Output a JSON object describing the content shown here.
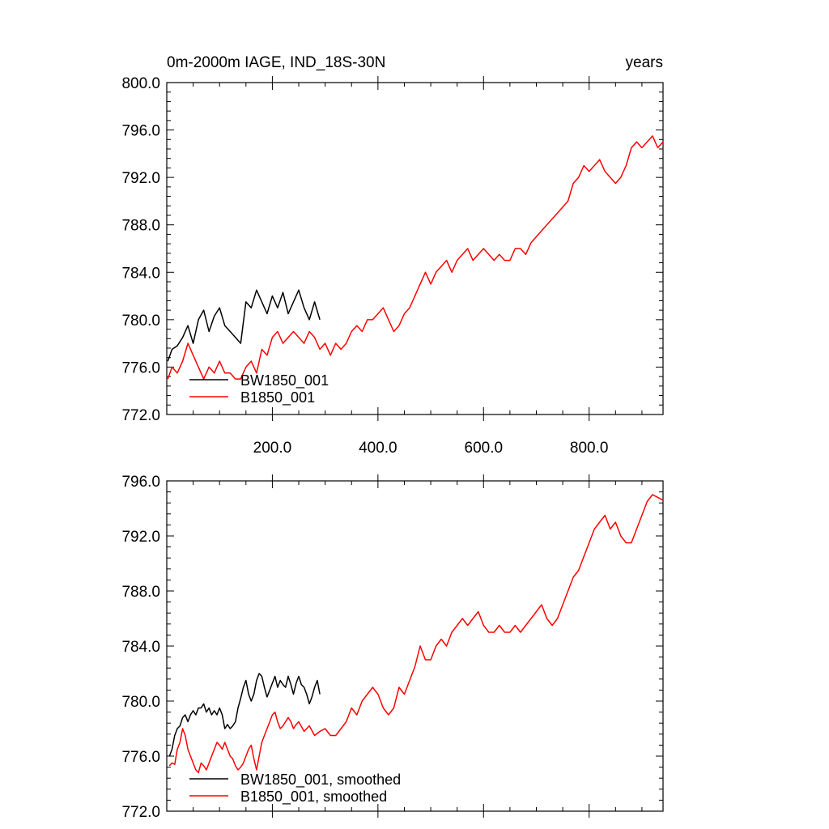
{
  "chart_data": [
    {
      "type": "line",
      "title": "0m-2000m IAGE, IND_18S-30N",
      "units": "years",
      "xlim": [
        0,
        940
      ],
      "ylim": [
        772,
        800
      ],
      "xticks": [
        200,
        400,
        600,
        800
      ],
      "xtick_labels": [
        "200.0",
        "400.0",
        "600.0",
        "800.0"
      ],
      "yticks": [
        772,
        776,
        780,
        784,
        788,
        792,
        796,
        800
      ],
      "ytick_labels": [
        "772.0",
        "776.0",
        "780.0",
        "784.0",
        "788.0",
        "792.0",
        "796.0",
        "800.0"
      ],
      "legend_position": "bottom-left",
      "series": [
        {
          "name": "BW1850_001",
          "color": "#000000",
          "x": [
            2,
            10,
            20,
            30,
            40,
            50,
            60,
            70,
            80,
            90,
            100,
            110,
            120,
            130,
            140,
            150,
            160,
            170,
            180,
            190,
            200,
            210,
            220,
            230,
            240,
            250,
            260,
            270,
            280,
            290
          ],
          "y": [
            776.5,
            777.5,
            777.8,
            778.5,
            779.5,
            778.0,
            780.0,
            780.8,
            779.0,
            780.3,
            781.0,
            779.5,
            779.0,
            778.5,
            778.0,
            781.5,
            781.0,
            782.5,
            781.5,
            780.5,
            782.0,
            781.0,
            782.3,
            780.5,
            781.5,
            782.5,
            781.0,
            780.0,
            781.5,
            780.0
          ]
        },
        {
          "name": "B1850_001",
          "color": "#ff0000",
          "x": [
            2,
            10,
            20,
            30,
            40,
            50,
            60,
            70,
            80,
            90,
            100,
            110,
            120,
            130,
            140,
            150,
            160,
            170,
            180,
            190,
            200,
            210,
            220,
            230,
            240,
            250,
            260,
            270,
            280,
            290,
            300,
            310,
            320,
            330,
            340,
            350,
            360,
            370,
            380,
            390,
            400,
            410,
            420,
            430,
            440,
            450,
            460,
            470,
            480,
            490,
            500,
            510,
            520,
            530,
            540,
            550,
            560,
            570,
            580,
            590,
            600,
            610,
            620,
            630,
            640,
            650,
            660,
            670,
            680,
            690,
            700,
            710,
            720,
            730,
            740,
            750,
            760,
            770,
            780,
            790,
            800,
            810,
            820,
            830,
            840,
            850,
            860,
            870,
            880,
            890,
            900,
            910,
            920,
            930,
            940
          ],
          "y": [
            775.0,
            776.0,
            775.5,
            776.5,
            778.0,
            777.0,
            776.0,
            775.0,
            776.0,
            775.5,
            776.5,
            775.5,
            775.5,
            775.0,
            775.0,
            776.0,
            776.5,
            775.5,
            777.5,
            777.0,
            778.5,
            779.0,
            778.0,
            778.5,
            779.0,
            778.5,
            778.0,
            779.0,
            778.5,
            777.5,
            778.0,
            777.0,
            778.0,
            777.5,
            778.0,
            779.0,
            779.5,
            779.0,
            780.0,
            780.0,
            780.5,
            781.0,
            780.0,
            779.0,
            779.5,
            780.5,
            781.0,
            782.0,
            783.0,
            784.0,
            783.0,
            784.0,
            784.5,
            785.0,
            784.0,
            785.0,
            785.5,
            786.0,
            785.0,
            785.5,
            786.0,
            785.5,
            785.0,
            785.5,
            785.0,
            785.0,
            786.0,
            786.0,
            785.5,
            786.5,
            787.0,
            787.5,
            788.0,
            788.5,
            789.0,
            789.5,
            790.0,
            791.5,
            792.0,
            793.0,
            792.5,
            793.0,
            793.5,
            792.5,
            792.0,
            791.5,
            792.0,
            793.0,
            794.5,
            795.0,
            794.5,
            795.0,
            795.5,
            794.5,
            795.0
          ]
        }
      ]
    },
    {
      "type": "line",
      "xlim": [
        0,
        940
      ],
      "ylim": [
        772,
        796
      ],
      "yticks": [
        772,
        776,
        780,
        784,
        788,
        792,
        796
      ],
      "ytick_labels": [
        "772.0",
        "776.0",
        "780.0",
        "784.0",
        "788.0",
        "792.0",
        "796.0"
      ],
      "legend_position": "bottom-left",
      "series": [
        {
          "name": "BW1850_001, smoothed",
          "color": "#000000",
          "x": [
            5,
            10,
            15,
            20,
            25,
            30,
            35,
            40,
            45,
            50,
            55,
            60,
            65,
            70,
            75,
            80,
            85,
            90,
            95,
            100,
            105,
            110,
            115,
            120,
            125,
            130,
            135,
            140,
            145,
            150,
            155,
            160,
            165,
            170,
            175,
            180,
            185,
            190,
            195,
            200,
            205,
            210,
            215,
            220,
            225,
            230,
            235,
            240,
            245,
            250,
            255,
            260,
            265,
            270,
            275,
            280,
            285,
            290
          ],
          "y": [
            776.0,
            776.5,
            777.5,
            778.0,
            778.2,
            778.8,
            779.0,
            778.5,
            779.0,
            779.3,
            779.0,
            779.5,
            779.5,
            779.8,
            779.2,
            779.5,
            779.0,
            779.3,
            779.0,
            779.5,
            779.0,
            778.0,
            778.3,
            778.0,
            778.2,
            778.5,
            779.5,
            780.2,
            781.0,
            781.5,
            780.5,
            780.0,
            780.5,
            781.5,
            782.0,
            781.8,
            781.0,
            780.3,
            780.8,
            781.3,
            781.8,
            781.0,
            781.5,
            781.2,
            781.0,
            781.8,
            781.2,
            780.5,
            781.3,
            781.8,
            781.2,
            781.0,
            780.5,
            779.8,
            780.3,
            781.0,
            781.5,
            780.5
          ]
        },
        {
          "name": "B1850_001, smoothed",
          "color": "#ff0000",
          "x": [
            5,
            10,
            15,
            20,
            25,
            30,
            35,
            40,
            45,
            50,
            55,
            60,
            65,
            70,
            75,
            80,
            85,
            90,
            95,
            100,
            105,
            110,
            115,
            120,
            125,
            130,
            135,
            140,
            145,
            150,
            155,
            160,
            165,
            170,
            175,
            180,
            185,
            190,
            195,
            200,
            205,
            210,
            215,
            220,
            225,
            230,
            235,
            240,
            245,
            250,
            260,
            270,
            280,
            290,
            300,
            310,
            320,
            330,
            340,
            350,
            360,
            370,
            380,
            390,
            400,
            410,
            420,
            430,
            440,
            450,
            460,
            470,
            480,
            490,
            500,
            510,
            520,
            530,
            540,
            550,
            560,
            570,
            580,
            590,
            600,
            610,
            620,
            630,
            640,
            650,
            660,
            670,
            680,
            690,
            700,
            710,
            720,
            730,
            740,
            750,
            760,
            770,
            780,
            790,
            800,
            810,
            820,
            830,
            840,
            850,
            860,
            870,
            880,
            890,
            900,
            910,
            920,
            930,
            940
          ],
          "y": [
            775.3,
            775.5,
            775.4,
            776.5,
            777.0,
            778.0,
            777.5,
            776.5,
            776.0,
            775.5,
            775.0,
            774.8,
            775.5,
            775.3,
            775.0,
            775.5,
            776.0,
            776.5,
            777.0,
            776.8,
            776.5,
            777.0,
            776.5,
            776.0,
            775.8,
            775.3,
            775.0,
            775.2,
            775.5,
            776.0,
            776.5,
            776.8,
            775.8,
            775.0,
            776.0,
            777.0,
            777.5,
            778.0,
            778.5,
            779.0,
            779.2,
            778.5,
            778.0,
            778.2,
            778.5,
            778.8,
            778.5,
            778.0,
            778.3,
            778.5,
            777.8,
            778.2,
            777.5,
            777.8,
            778.0,
            777.5,
            777.5,
            778.0,
            778.5,
            779.5,
            779.0,
            780.0,
            780.5,
            781.0,
            780.5,
            779.5,
            779.0,
            779.5,
            781.0,
            780.5,
            781.5,
            782.5,
            784.0,
            783.0,
            783.0,
            784.0,
            784.5,
            784.0,
            785.0,
            785.5,
            786.0,
            785.5,
            786.0,
            786.5,
            785.5,
            785.0,
            785.0,
            785.5,
            785.0,
            785.0,
            785.5,
            785.0,
            785.5,
            786.0,
            786.5,
            787.0,
            786.0,
            785.5,
            786.0,
            787.0,
            788.0,
            789.0,
            789.5,
            790.5,
            791.5,
            792.5,
            793.0,
            793.5,
            792.5,
            793.0,
            792.0,
            791.5,
            791.5,
            792.5,
            793.5,
            794.5,
            795.0,
            794.8,
            794.6
          ]
        }
      ]
    }
  ]
}
